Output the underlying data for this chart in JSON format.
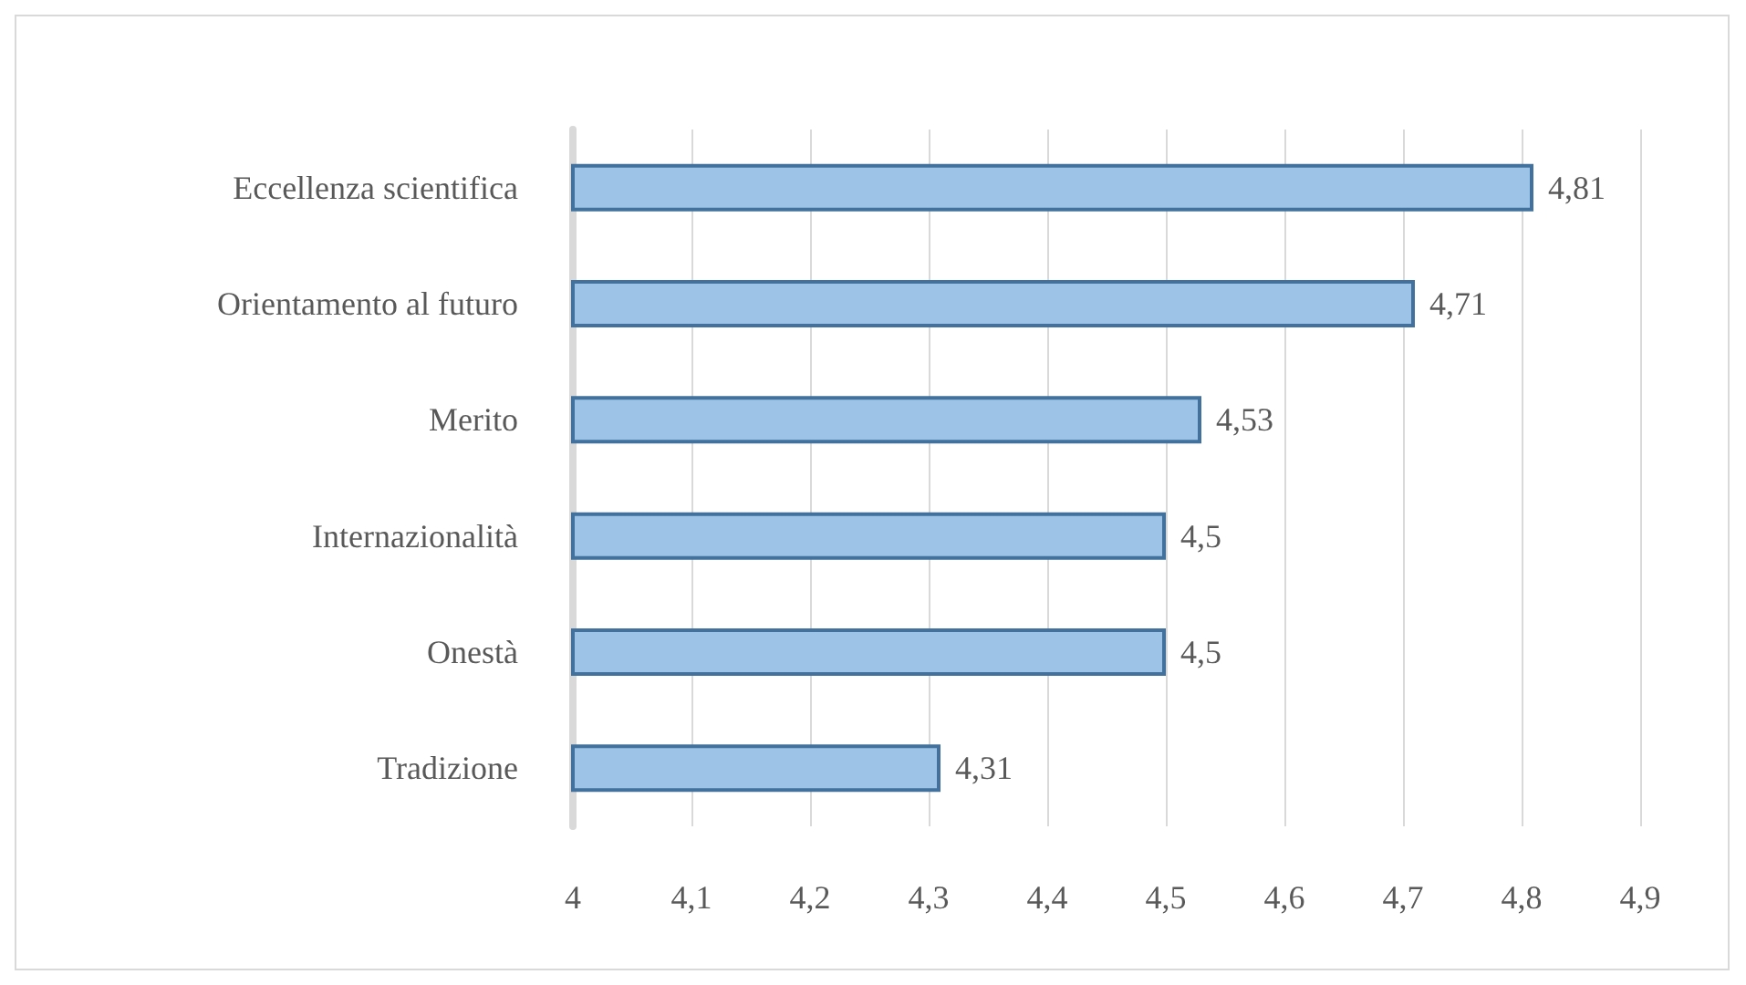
{
  "chart_data": {
    "type": "bar",
    "orientation": "horizontal",
    "categories": [
      "Eccellenza scientifica",
      "Orientamento al futuro",
      "Merito",
      "Internazionalità",
      "Onestà",
      "Tradizione"
    ],
    "values": [
      4.81,
      4.71,
      4.53,
      4.5,
      4.5,
      4.31
    ],
    "value_labels": [
      "4,81",
      "4,71",
      "4,53",
      "4,5",
      "4,5",
      "4,31"
    ],
    "color": "#9dc3e6",
    "xlim": [
      4,
      4.9
    ],
    "xticks": [
      {
        "value": 4,
        "label": "4"
      },
      {
        "value": 4.1,
        "label": "4,1"
      },
      {
        "value": 4.2,
        "label": "4,2"
      },
      {
        "value": 4.3,
        "label": "4,3"
      },
      {
        "value": 4.4,
        "label": "4,4"
      },
      {
        "value": 4.5,
        "label": "4,5"
      },
      {
        "value": 4.6,
        "label": "4,6"
      },
      {
        "value": 4.7,
        "label": "4,7"
      },
      {
        "value": 4.8,
        "label": "4,8"
      },
      {
        "value": 4.9,
        "label": "4,9"
      }
    ],
    "grid": "x"
  }
}
